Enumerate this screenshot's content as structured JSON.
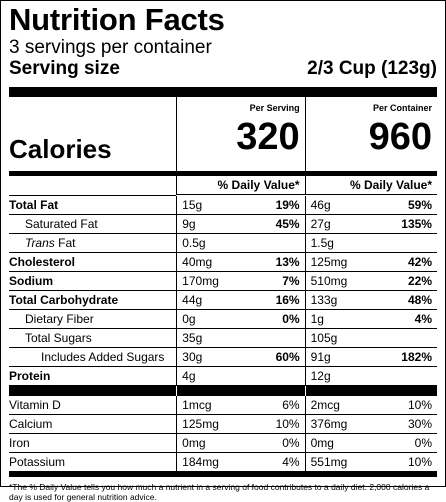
{
  "title": "Nutrition Facts",
  "servings": "3 servings per container",
  "serving_size_label": "Serving size",
  "serving_size_value": "2/3 Cup (123g)",
  "per_serving": "Per Serving",
  "per_container": "Per Container",
  "calories_label": "Calories",
  "calories_serving": "320",
  "calories_container": "960",
  "dv_header": "% Daily Value*",
  "nutrients": [
    {
      "name": "Total Fat",
      "bold": true,
      "indent": 0,
      "a_amt": "15g",
      "a_pct": "19%",
      "b_amt": "46g",
      "b_pct": "59%"
    },
    {
      "name": "Saturated Fat",
      "bold": false,
      "indent": 1,
      "a_amt": "9g",
      "a_pct": "45%",
      "b_amt": "27g",
      "b_pct": "135%"
    },
    {
      "name_italic": "Trans",
      "name": " Fat",
      "bold": false,
      "indent": 1,
      "a_amt": "0.5g",
      "a_pct": "",
      "b_amt": "1.5g",
      "b_pct": ""
    },
    {
      "name": "Cholesterol",
      "bold": true,
      "indent": 0,
      "a_amt": "40mg",
      "a_pct": "13%",
      "b_amt": "125mg",
      "b_pct": "42%"
    },
    {
      "name": "Sodium",
      "bold": true,
      "indent": 0,
      "a_amt": "170mg",
      "a_pct": "7%",
      "b_amt": "510mg",
      "b_pct": "22%"
    },
    {
      "name": "Total Carbohydrate",
      "bold": true,
      "indent": 0,
      "a_amt": "44g",
      "a_pct": "16%",
      "b_amt": "133g",
      "b_pct": "48%"
    },
    {
      "name": "Dietary Fiber",
      "bold": false,
      "indent": 1,
      "a_amt": "0g",
      "a_pct": "0%",
      "b_amt": "1g",
      "b_pct": "4%"
    },
    {
      "name": "Total Sugars",
      "bold": false,
      "indent": 1,
      "a_amt": "35g",
      "a_pct": "",
      "b_amt": "105g",
      "b_pct": ""
    },
    {
      "name": "Includes Added Sugars",
      "bold": false,
      "indent": 2,
      "a_amt": "30g",
      "a_pct": "60%",
      "b_amt": "91g",
      "b_pct": "182%"
    },
    {
      "name": "Protein",
      "bold": true,
      "indent": 0,
      "a_amt": "4g",
      "a_pct": "",
      "b_amt": "12g",
      "b_pct": ""
    }
  ],
  "vitamins": [
    {
      "name": "Vitamin D",
      "a_amt": "1mcg",
      "a_pct": "6%",
      "b_amt": "2mcg",
      "b_pct": "10%"
    },
    {
      "name": "Calcium",
      "a_amt": "125mg",
      "a_pct": "10%",
      "b_amt": "376mg",
      "b_pct": "30%"
    },
    {
      "name": "Iron",
      "a_amt": "0mg",
      "a_pct": "0%",
      "b_amt": "0mg",
      "b_pct": "0%"
    },
    {
      "name": "Potassium",
      "a_amt": "184mg",
      "a_pct": "4%",
      "b_amt": "551mg",
      "b_pct": "10%"
    }
  ],
  "footnote": "*The % Daily Value tells you how much a nutrient in a serving of food contributes to a daily diet. 2,000 calories a day is used for general nutrition advice."
}
